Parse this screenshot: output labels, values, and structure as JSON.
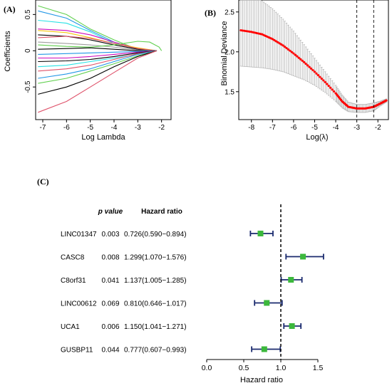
{
  "panels": {
    "a": {
      "letter": "(A)"
    },
    "b": {
      "letter": "(B)"
    },
    "c": {
      "letter": "(C)"
    }
  },
  "chart_data": [
    {
      "panel": "A",
      "type": "line",
      "xlabel": "Log Lambda",
      "ylabel": "Coefficients",
      "xlim": [
        -7.3,
        -1.6
      ],
      "ylim": [
        -0.95,
        0.7
      ],
      "x_ticks": [
        -7,
        -6,
        -5,
        -4,
        -3,
        -2
      ],
      "y_ticks": [
        -0.5,
        0,
        0.5
      ],
      "series_style": "coefficient paths converging to zero near log lambda -2",
      "series": [
        {
          "color": "#61d04f",
          "values": [
            [
              -7.2,
              0.62
            ],
            [
              -6,
              0.5
            ],
            [
              -5,
              0.3
            ],
            [
              -4,
              0.15
            ],
            [
              -3,
              0.02
            ],
            [
              -2.2,
              0
            ]
          ]
        },
        {
          "color": "#2297e6",
          "values": [
            [
              -7.2,
              0.55
            ],
            [
              -6,
              0.45
            ],
            [
              -5,
              0.28
            ],
            [
              -4,
              0.12
            ],
            [
              -3,
              0.02
            ],
            [
              -2.2,
              0
            ]
          ]
        },
        {
          "color": "#28e2e5",
          "values": [
            [
              -7.2,
              0.42
            ],
            [
              -6,
              0.38
            ],
            [
              -5,
              0.26
            ],
            [
              -4,
              0.1
            ],
            [
              -3,
              0.03
            ],
            [
              -2.2,
              0
            ]
          ]
        },
        {
          "color": "#cd0bbc",
          "values": [
            [
              -7.2,
              0.3
            ],
            [
              -6,
              0.28
            ],
            [
              -5,
              0.22
            ],
            [
              -4,
              0.12
            ],
            [
              -3,
              0.03
            ],
            [
              -2.2,
              0
            ]
          ]
        },
        {
          "color": "#f5c710",
          "values": [
            [
              -7.2,
              0.28
            ],
            [
              -6,
              0.25
            ],
            [
              -5,
              0.18
            ],
            [
              -4,
              0.1
            ],
            [
              -3,
              0.04
            ],
            [
              -2.2,
              0
            ]
          ]
        },
        {
          "color": "#000000",
          "values": [
            [
              -7.2,
              0.22
            ],
            [
              -6,
              0.2
            ],
            [
              -5,
              0.15
            ],
            [
              -4,
              0.08
            ],
            [
              -3,
              0.02
            ],
            [
              -2.2,
              0
            ]
          ]
        },
        {
          "color": "#df536b",
          "values": [
            [
              -7.2,
              0.18
            ],
            [
              -6,
              0.2
            ],
            [
              -5,
              0.17
            ],
            [
              -4,
              0.1
            ],
            [
              -3,
              0.03
            ],
            [
              -2.2,
              0
            ]
          ]
        },
        {
          "color": "#9e9e9e",
          "values": [
            [
              -7.2,
              0.12
            ],
            [
              -6,
              0.1
            ],
            [
              -5,
              0.08
            ],
            [
              -4,
              0.05
            ],
            [
              -3,
              0.01
            ],
            [
              -2.2,
              0
            ]
          ]
        },
        {
          "color": "#61d04f",
          "values": [
            [
              -7.2,
              0.08
            ],
            [
              -6,
              0.06
            ],
            [
              -5,
              0.05
            ],
            [
              -4,
              0.08
            ],
            [
              -3,
              0.13
            ],
            [
              -2.5,
              0.12
            ],
            [
              -2.1,
              0.05
            ],
            [
              -2.0,
              0
            ]
          ]
        },
        {
          "color": "#000000",
          "values": [
            [
              -7.2,
              0.02
            ],
            [
              -6,
              0.03
            ],
            [
              -5,
              0.04
            ],
            [
              -4,
              0.02
            ],
            [
              -3,
              0
            ],
            [
              -2.2,
              0
            ]
          ]
        },
        {
          "color": "#2297e6",
          "values": [
            [
              -7.2,
              -0.05
            ],
            [
              -6,
              -0.04
            ],
            [
              -5,
              -0.03
            ],
            [
              -4,
              -0.02
            ],
            [
              -3,
              -0.01
            ],
            [
              -2.2,
              0
            ]
          ]
        },
        {
          "color": "#cd0bbc",
          "values": [
            [
              -7.2,
              -0.1
            ],
            [
              -6,
              -0.1
            ],
            [
              -5,
              -0.08
            ],
            [
              -4,
              -0.05
            ],
            [
              -3,
              -0.02
            ],
            [
              -2.2,
              0
            ]
          ]
        },
        {
          "color": "#000000",
          "values": [
            [
              -7.2,
              -0.15
            ],
            [
              -6,
              -0.14
            ],
            [
              -5,
              -0.12
            ],
            [
              -4,
              -0.08
            ],
            [
              -3,
              -0.03
            ],
            [
              -2.2,
              0
            ]
          ]
        },
        {
          "color": "#28e2e5",
          "values": [
            [
              -7.2,
              -0.22
            ],
            [
              -6,
              -0.2
            ],
            [
              -5,
              -0.15
            ],
            [
              -4,
              -0.1
            ],
            [
              -3,
              -0.05
            ],
            [
              -2.2,
              0
            ]
          ]
        },
        {
          "color": "#df536b",
          "values": [
            [
              -7.2,
              -0.28
            ],
            [
              -6,
              -0.25
            ],
            [
              -5,
              -0.2
            ],
            [
              -4,
              -0.12
            ],
            [
              -3,
              -0.04
            ],
            [
              -2.2,
              0
            ]
          ]
        },
        {
          "color": "#2297e6",
          "values": [
            [
              -7.2,
              -0.38
            ],
            [
              -6,
              -0.32
            ],
            [
              -5,
              -0.25
            ],
            [
              -4,
              -0.15
            ],
            [
              -3,
              -0.05
            ],
            [
              -2.2,
              0
            ]
          ]
        },
        {
          "color": "#61d04f",
          "values": [
            [
              -7.2,
              -0.45
            ],
            [
              -6,
              -0.38
            ],
            [
              -5,
              -0.28
            ],
            [
              -4,
              -0.18
            ],
            [
              -3,
              -0.07
            ],
            [
              -2.2,
              0
            ]
          ]
        },
        {
          "color": "#000000",
          "values": [
            [
              -7.2,
              -0.6
            ],
            [
              -6,
              -0.5
            ],
            [
              -5,
              -0.38
            ],
            [
              -4,
              -0.22
            ],
            [
              -3,
              -0.08
            ],
            [
              -2.2,
              0
            ]
          ]
        },
        {
          "color": "#df536b",
          "values": [
            [
              -7.2,
              -0.85
            ],
            [
              -6,
              -0.7
            ],
            [
              -5,
              -0.5
            ],
            [
              -4,
              -0.3
            ],
            [
              -3,
              -0.1
            ],
            [
              -2.2,
              0
            ]
          ]
        }
      ]
    },
    {
      "panel": "B",
      "type": "line",
      "xlabel": "Log(λ)",
      "ylabel": "Binomial Deviance",
      "xlim": [
        -8.6,
        -1.5
      ],
      "ylim": [
        1.15,
        2.65
      ],
      "x_ticks": [
        -8,
        -7,
        -6,
        -5,
        -4,
        -3,
        -2
      ],
      "y_ticks": [
        1.5,
        2.0,
        2.5
      ],
      "vlines": [
        -3.0,
        -2.2
      ],
      "series": [
        {
          "color": "#ff0000",
          "error_bar_color": "#b3b3b3",
          "values": [
            [
              -8.5,
              2.27
            ],
            [
              -8,
              2.25
            ],
            [
              -7.5,
              2.22
            ],
            [
              -7,
              2.16
            ],
            [
              -6.5,
              2.08
            ],
            [
              -6,
              1.98
            ],
            [
              -5.5,
              1.87
            ],
            [
              -5,
              1.75
            ],
            [
              -4.5,
              1.62
            ],
            [
              -4,
              1.48
            ],
            [
              -3.7,
              1.38
            ],
            [
              -3.4,
              1.31
            ],
            [
              -3.0,
              1.29
            ],
            [
              -2.6,
              1.29
            ],
            [
              -2.2,
              1.31
            ],
            [
              -1.9,
              1.35
            ],
            [
              -1.6,
              1.39
            ]
          ],
          "error": [
            [
              -8.5,
              0.45
            ],
            [
              -8,
              0.44
            ],
            [
              -7.5,
              0.42
            ],
            [
              -7,
              0.38
            ],
            [
              -6.5,
              0.33
            ],
            [
              -6,
              0.28
            ],
            [
              -5.5,
              0.22
            ],
            [
              -5,
              0.17
            ],
            [
              -4.5,
              0.13
            ],
            [
              -4,
              0.1
            ],
            [
              -3.7,
              0.08
            ],
            [
              -3.4,
              0.06
            ],
            [
              -3.0,
              0.05
            ],
            [
              -2.6,
              0.05
            ],
            [
              -2.2,
              0.05
            ],
            [
              -1.9,
              0.03
            ],
            [
              -1.6,
              0.02
            ]
          ]
        }
      ]
    },
    {
      "panel": "C",
      "type": "forest",
      "xlabel": "Hazard ratio",
      "xlim": [
        0.0,
        1.5
      ],
      "x_ticks": [
        "0.0",
        "0.5",
        "1.0",
        "1.5"
      ],
      "reference_line": 1.0,
      "columns": {
        "p_value": "p value",
        "hazard_ratio": "Hazard ratio"
      },
      "rows": [
        {
          "label": "LINC01347",
          "p": "0.003",
          "hr_text": "0.726(0.590−0.894)",
          "hr": 0.726,
          "lo": 0.59,
          "hi": 0.894
        },
        {
          "label": "CASC8",
          "p": "0.008",
          "hr_text": "1.299(1.070−1.576)",
          "hr": 1.299,
          "lo": 1.07,
          "hi": 1.576
        },
        {
          "label": "C8orf31",
          "p": "0.041",
          "hr_text": "1.137(1.005−1.285)",
          "hr": 1.137,
          "lo": 1.005,
          "hi": 1.285
        },
        {
          "label": "LINC00612",
          "p": "0.069",
          "hr_text": "0.810(0.646−1.017)",
          "hr": 0.81,
          "lo": 0.646,
          "hi": 1.017
        },
        {
          "label": "UCA1",
          "p": "0.006",
          "hr_text": "1.150(1.041−1.271)",
          "hr": 1.15,
          "lo": 1.041,
          "hi": 1.271
        },
        {
          "label": "GUSBP11",
          "p": "0.044",
          "hr_text": "0.777(0.607−0.993)",
          "hr": 0.777,
          "lo": 0.607,
          "hi": 0.993
        }
      ],
      "marker_color": "#3cb83c",
      "ci_color": "#1a2a6e"
    }
  ]
}
